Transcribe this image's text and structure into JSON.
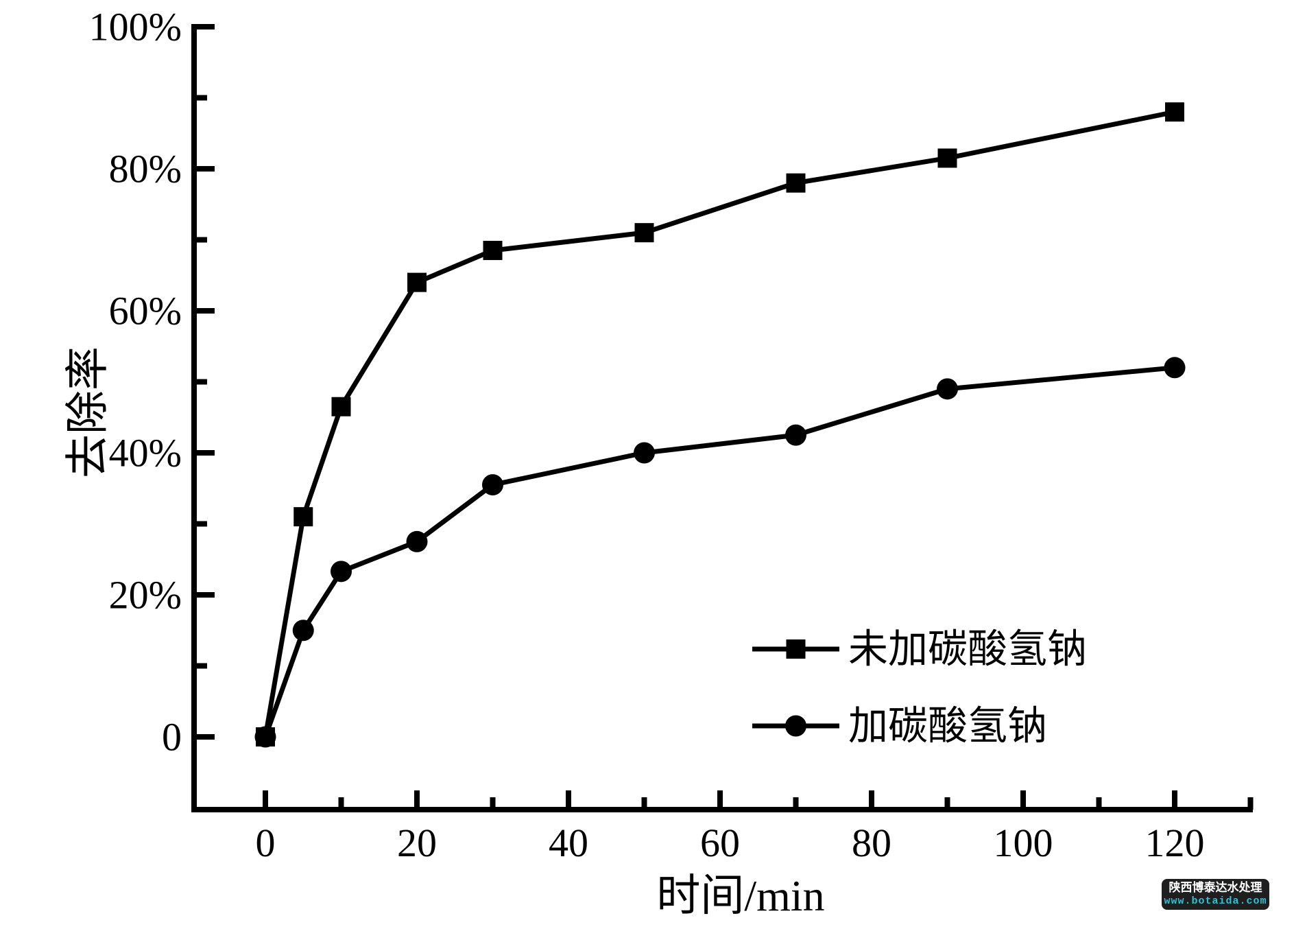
{
  "watermark": {
    "line1": "陕西博泰达水处理",
    "line2": "www.botaida.com",
    "bg_color": "#1f1f1f",
    "line1_color": "#ffffff",
    "line2_color": "#2fc1d5"
  },
  "chart_data": {
    "type": "line",
    "title": "",
    "xlabel": "时间/min",
    "ylabel": "去除率",
    "xlim": [
      -9.5,
      130
    ],
    "ylim": [
      -10.2,
      100
    ],
    "grid": "off",
    "background": "#ffffff",
    "line_color": "#000000",
    "x_major_ticks": [
      0,
      20,
      40,
      60,
      80,
      100,
      120
    ],
    "x_minor_ticks": [
      10,
      30,
      50,
      70,
      90,
      110,
      130
    ],
    "y_major_ticks": [
      0,
      20,
      40,
      60,
      80,
      100
    ],
    "y_major_tick_labels": [
      "0",
      "20%",
      "40%",
      "60%",
      "80%",
      "100%"
    ],
    "y_minor_ticks": [
      10,
      30,
      50,
      70,
      90
    ],
    "x": [
      0,
      5,
      10,
      20,
      30,
      50,
      70,
      90,
      120
    ],
    "series": [
      {
        "name": "未加碳酸氢钠",
        "marker": "square",
        "values": [
          0,
          31,
          46.5,
          64,
          68.5,
          71,
          78,
          81.5,
          88
        ]
      },
      {
        "name": "加碳酸氢钠",
        "marker": "circle",
        "values": [
          0,
          15,
          23.3,
          27.5,
          35.5,
          40,
          42.5,
          49,
          52
        ]
      }
    ],
    "legend_position": "inside lower right",
    "legend_entries": [
      "未加碳酸氢钠",
      "加碳酸氢钠"
    ]
  }
}
